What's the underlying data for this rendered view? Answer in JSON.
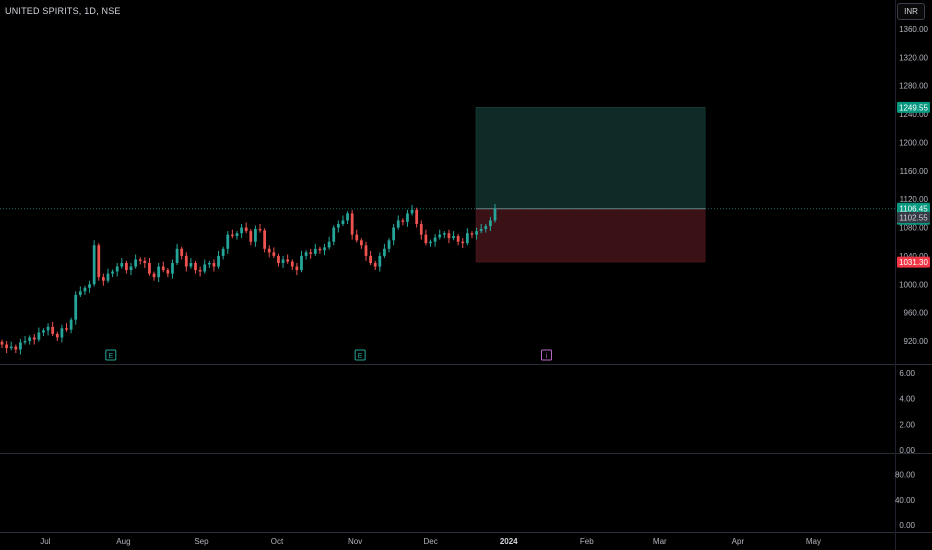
{
  "header": {
    "symbol_title": "UNITED SPIRITS, 1D, NSE",
    "currency": "INR"
  },
  "colors": {
    "up": "#26a69a",
    "down": "#ef5350",
    "profit_zone": "#0f2b27",
    "loss_zone": "#3a1216",
    "target_tag": "#089981",
    "stop_tag": "#f23645"
  },
  "chart_data": [
    {
      "type": "candlestick",
      "title": "UNITED SPIRITS, 1D, NSE",
      "currency": "INR",
      "x_tick_labels": [
        "Jul",
        "Aug",
        "Sep",
        "Oct",
        "Nov",
        "Dec",
        "2024",
        "Feb",
        "Mar",
        "Apr",
        "May"
      ],
      "y_tick_labels": [
        "1360.00",
        "1320.00",
        "1280.00",
        "1240.00",
        "1200.00",
        "1160.00",
        "1120.00",
        "1080.00",
        "1040.00",
        "1000.00",
        "960.00",
        "920.00"
      ],
      "ylim": [
        900,
        1375
      ],
      "closes": [
        915,
        910,
        912,
        908,
        918,
        920,
        925,
        922,
        932,
        935,
        940,
        930,
        925,
        938,
        936,
        950,
        985,
        990,
        995,
        1000,
        1055,
        1010,
        1005,
        1015,
        1018,
        1025,
        1030,
        1020,
        1025,
        1035,
        1033,
        1030,
        1015,
        1010,
        1025,
        1020,
        1015,
        1030,
        1050,
        1040,
        1025,
        1030,
        1020,
        1018,
        1028,
        1030,
        1025,
        1040,
        1050,
        1070,
        1068,
        1072,
        1080,
        1075,
        1060,
        1078,
        1076,
        1050,
        1045,
        1040,
        1030,
        1035,
        1032,
        1025,
        1020,
        1040,
        1045,
        1043,
        1050,
        1048,
        1052,
        1060,
        1080,
        1085,
        1090,
        1100,
        1070,
        1062,
        1055,
        1040,
        1030,
        1025,
        1040,
        1050,
        1062,
        1080,
        1090,
        1088,
        1100,
        1105,
        1085,
        1070,
        1058,
        1060,
        1066,
        1070,
        1072,
        1065,
        1068,
        1060,
        1058,
        1072,
        1070,
        1075,
        1078,
        1082,
        1090,
        1106
      ],
      "x_range": [
        "2023-06-13",
        "2024-05-31"
      ],
      "current_price": "1106.45",
      "countdown": "55:10",
      "previous_close": "1102.55",
      "events": [
        {
          "date": "2023-07-27",
          "label": "E"
        },
        {
          "date": "2023-11-03",
          "label": "E"
        },
        {
          "date": "2024-01-16",
          "label": "i"
        }
      ],
      "long_position": {
        "entry": 1106.45,
        "target": 1249.55,
        "stop": 1031.3,
        "start": "2023-12-19",
        "end": "2024-03-19"
      }
    },
    {
      "type": "line",
      "title": "",
      "y_tick_labels": [
        "6.00",
        "4.00",
        "2.00",
        "0.00"
      ],
      "ylim": [
        0,
        6
      ]
    },
    {
      "type": "line",
      "title": "",
      "y_tick_labels": [
        "80.00",
        "40.00",
        "0.00"
      ],
      "ylim": [
        0,
        100
      ]
    }
  ]
}
